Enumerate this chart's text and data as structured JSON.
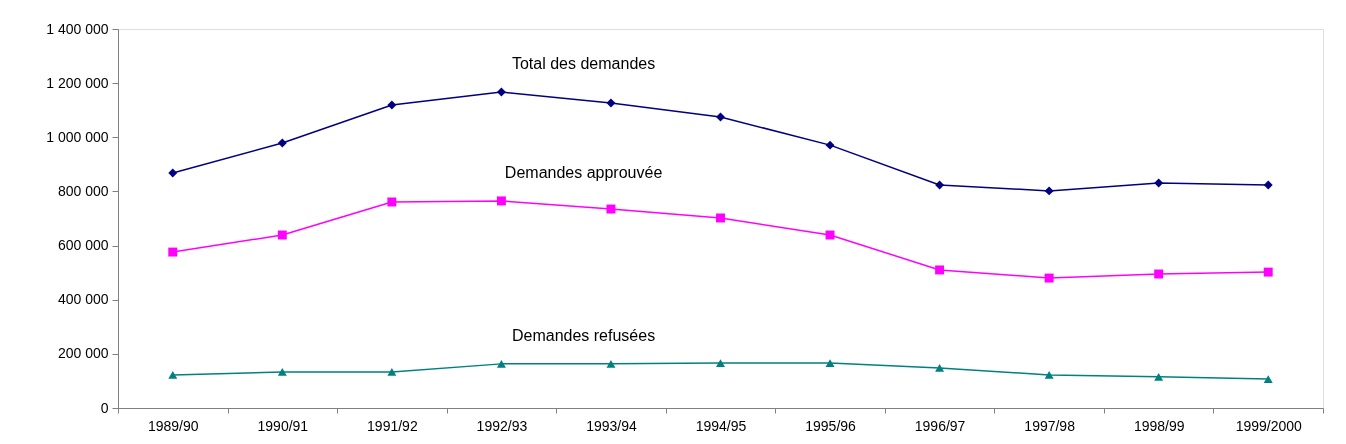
{
  "chart_data": {
    "type": "line",
    "categories": [
      "1989/90",
      "1990/91",
      "1991/92",
      "1992/93",
      "1993/94",
      "1994/95",
      "1995/96",
      "1996/97",
      "1997/98",
      "1998/99",
      "1999/2000"
    ],
    "series": [
      {
        "name": "Total des demandes",
        "color": "#000080",
        "marker": "diamond",
        "values": [
          868000,
          979000,
          1119000,
          1167000,
          1127000,
          1075000,
          971000,
          824000,
          802000,
          831000,
          824000
        ]
      },
      {
        "name": "Demandes approuvée",
        "color": "#ff00ff",
        "marker": "square",
        "values": [
          576000,
          639000,
          761000,
          765000,
          735000,
          702000,
          639000,
          510000,
          480000,
          495000,
          502000
        ]
      },
      {
        "name": "Demandes refusées",
        "color": "#008080",
        "marker": "triangle",
        "values": [
          122000,
          133000,
          133000,
          163000,
          163000,
          166000,
          166000,
          148000,
          122000,
          115000,
          107000
        ]
      }
    ],
    "ylim": [
      0,
      1400000
    ],
    "yticks": [
      0,
      {
        "value": 200000,
        "label": "200 000"
      },
      {
        "value": 400000,
        "label": "400 000"
      },
      {
        "value": 600000,
        "label": "600 000"
      },
      {
        "value": 800000,
        "label": "800 000"
      },
      {
        "value": 1000000,
        "label": "1 000 000"
      },
      {
        "value": 1200000,
        "label": "1 200 000"
      },
      {
        "value": 1400000,
        "label": "1 400 000"
      }
    ],
    "grid": false,
    "legend": false,
    "line_style": "solid"
  }
}
